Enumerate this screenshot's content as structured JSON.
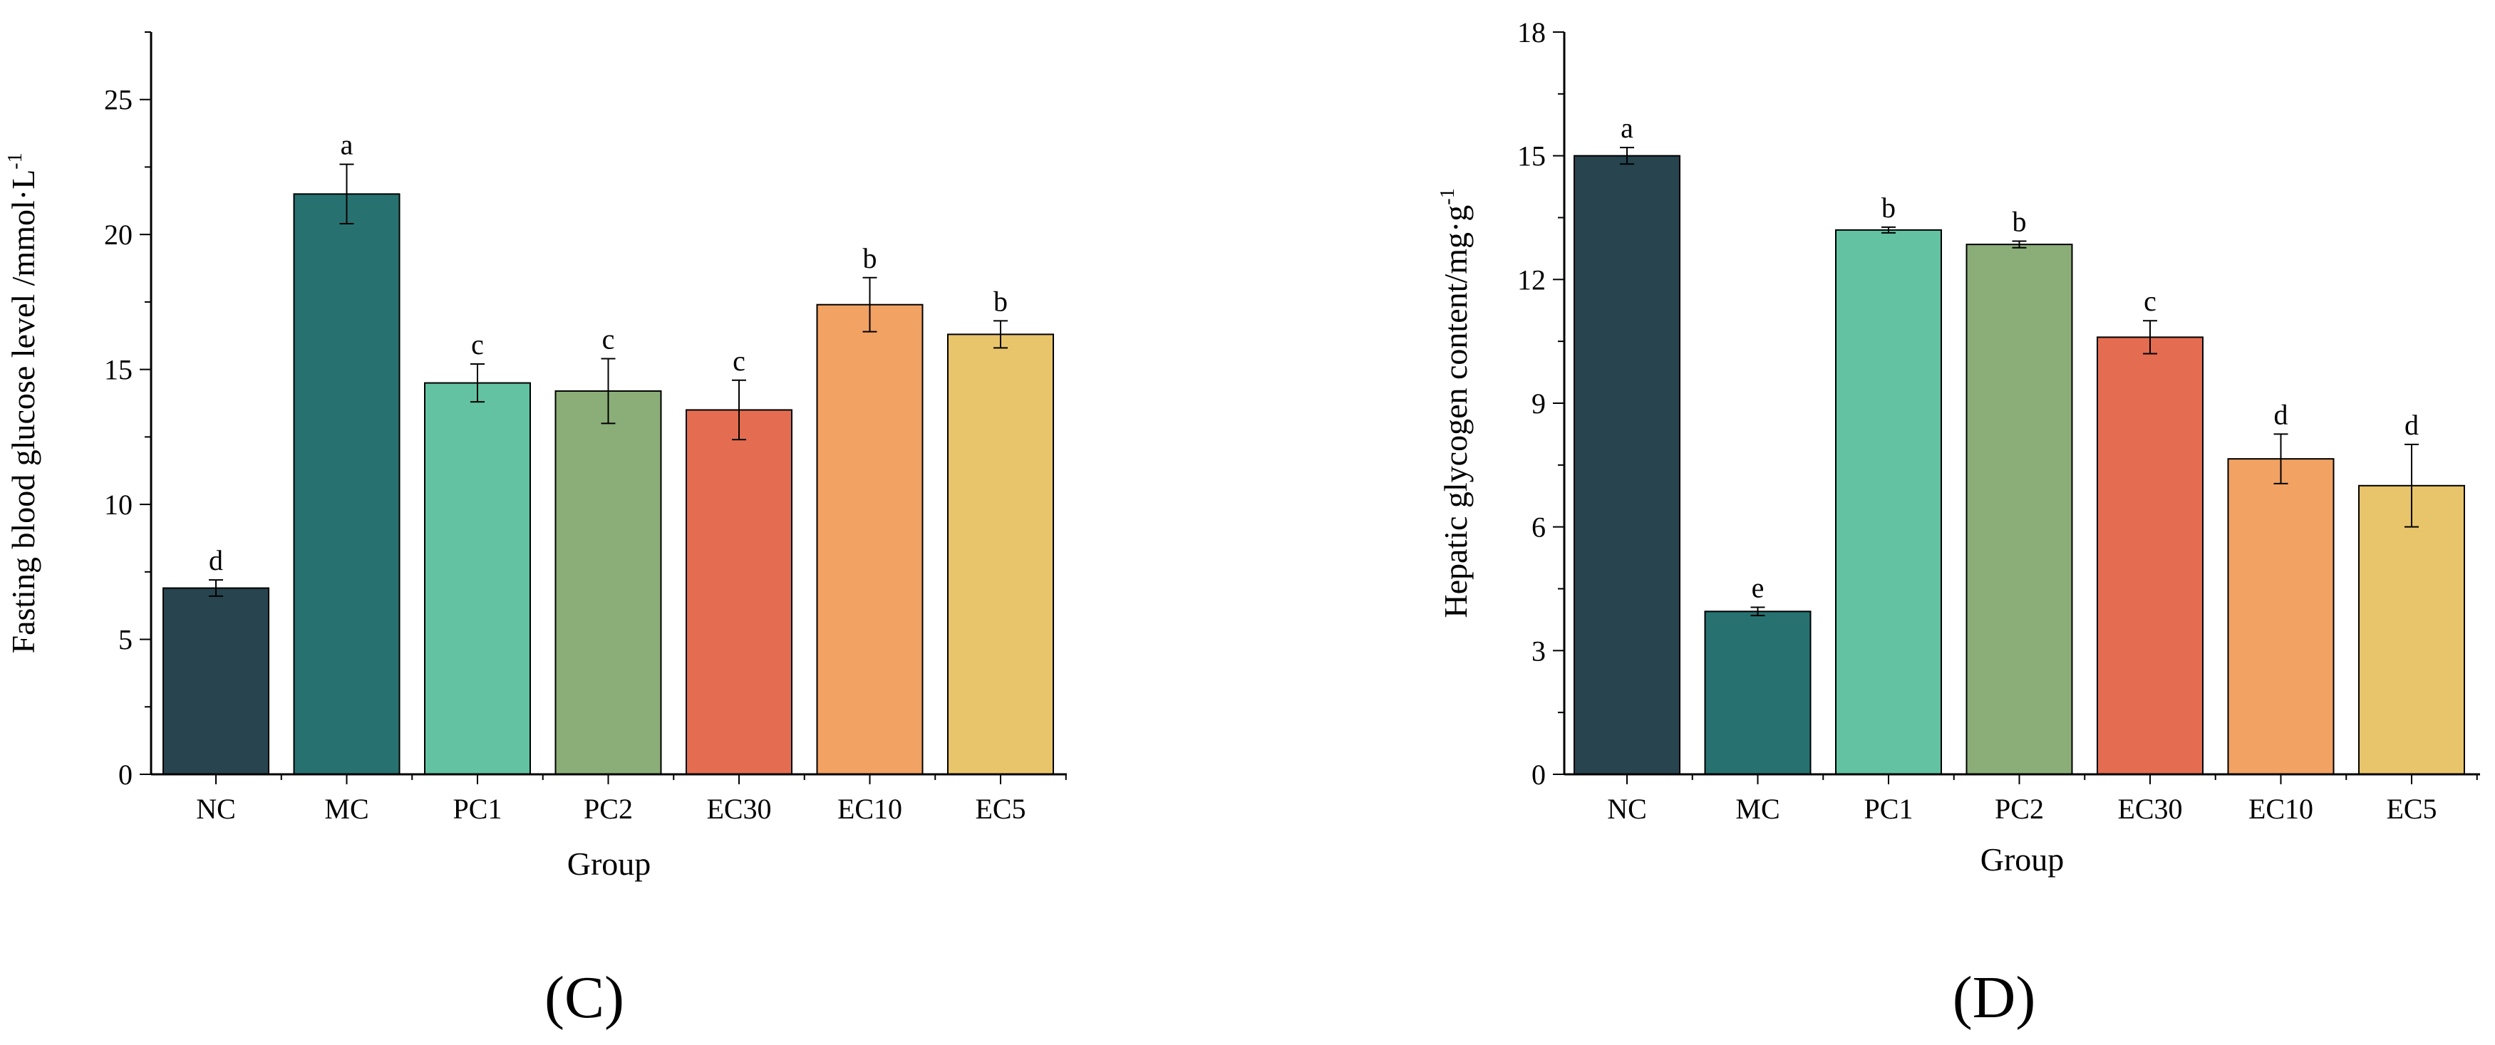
{
  "chart_data": [
    {
      "type": "bar",
      "panel_label": "(C)",
      "panel_letter": "C",
      "categories": [
        "NC",
        "MC",
        "PC1",
        "PC2",
        "EC30",
        "EC10",
        "EC5"
      ],
      "values": [
        6.9,
        21.5,
        14.5,
        14.2,
        13.5,
        17.4,
        16.3
      ],
      "errors": [
        0.3,
        1.1,
        0.7,
        1.2,
        1.1,
        1.0,
        0.5
      ],
      "significance": [
        "d",
        "a",
        "c",
        "c",
        "c",
        "b",
        "b"
      ],
      "xlabel": "Group",
      "ylabel_main": "Fasting blood glucose level /mmol·L",
      "ylabel_sup": "-1",
      "ylim": [
        0,
        27.5
      ],
      "yticks": [
        0,
        5,
        10,
        15,
        20,
        25
      ],
      "grid": false
    },
    {
      "type": "bar",
      "panel_label": "(D)",
      "panel_letter": "D",
      "categories": [
        "NC",
        "MC",
        "PC1",
        "PC2",
        "EC30",
        "EC10",
        "EC5"
      ],
      "values": [
        15.0,
        3.95,
        13.2,
        12.85,
        10.6,
        7.65,
        7.0
      ],
      "errors": [
        0.2,
        0.1,
        0.07,
        0.08,
        0.4,
        0.6,
        1.0
      ],
      "significance": [
        "a",
        "e",
        "b",
        "b",
        "c",
        "d",
        "d"
      ],
      "xlabel": "Group",
      "ylabel_main": "Hepatic glycogen content/mg·g",
      "ylabel_sup": "-1",
      "ylim": [
        0,
        18
      ],
      "yticks": [
        0,
        3,
        6,
        9,
        12,
        15,
        18
      ],
      "grid": false
    }
  ],
  "colors": {
    "bars": [
      "#27444f",
      "#277270",
      "#62c2a1",
      "#8bae79",
      "#e46d51",
      "#f2a263",
      "#e8c46b"
    ],
    "axis": "#000000",
    "bar_stroke": "#000000"
  }
}
